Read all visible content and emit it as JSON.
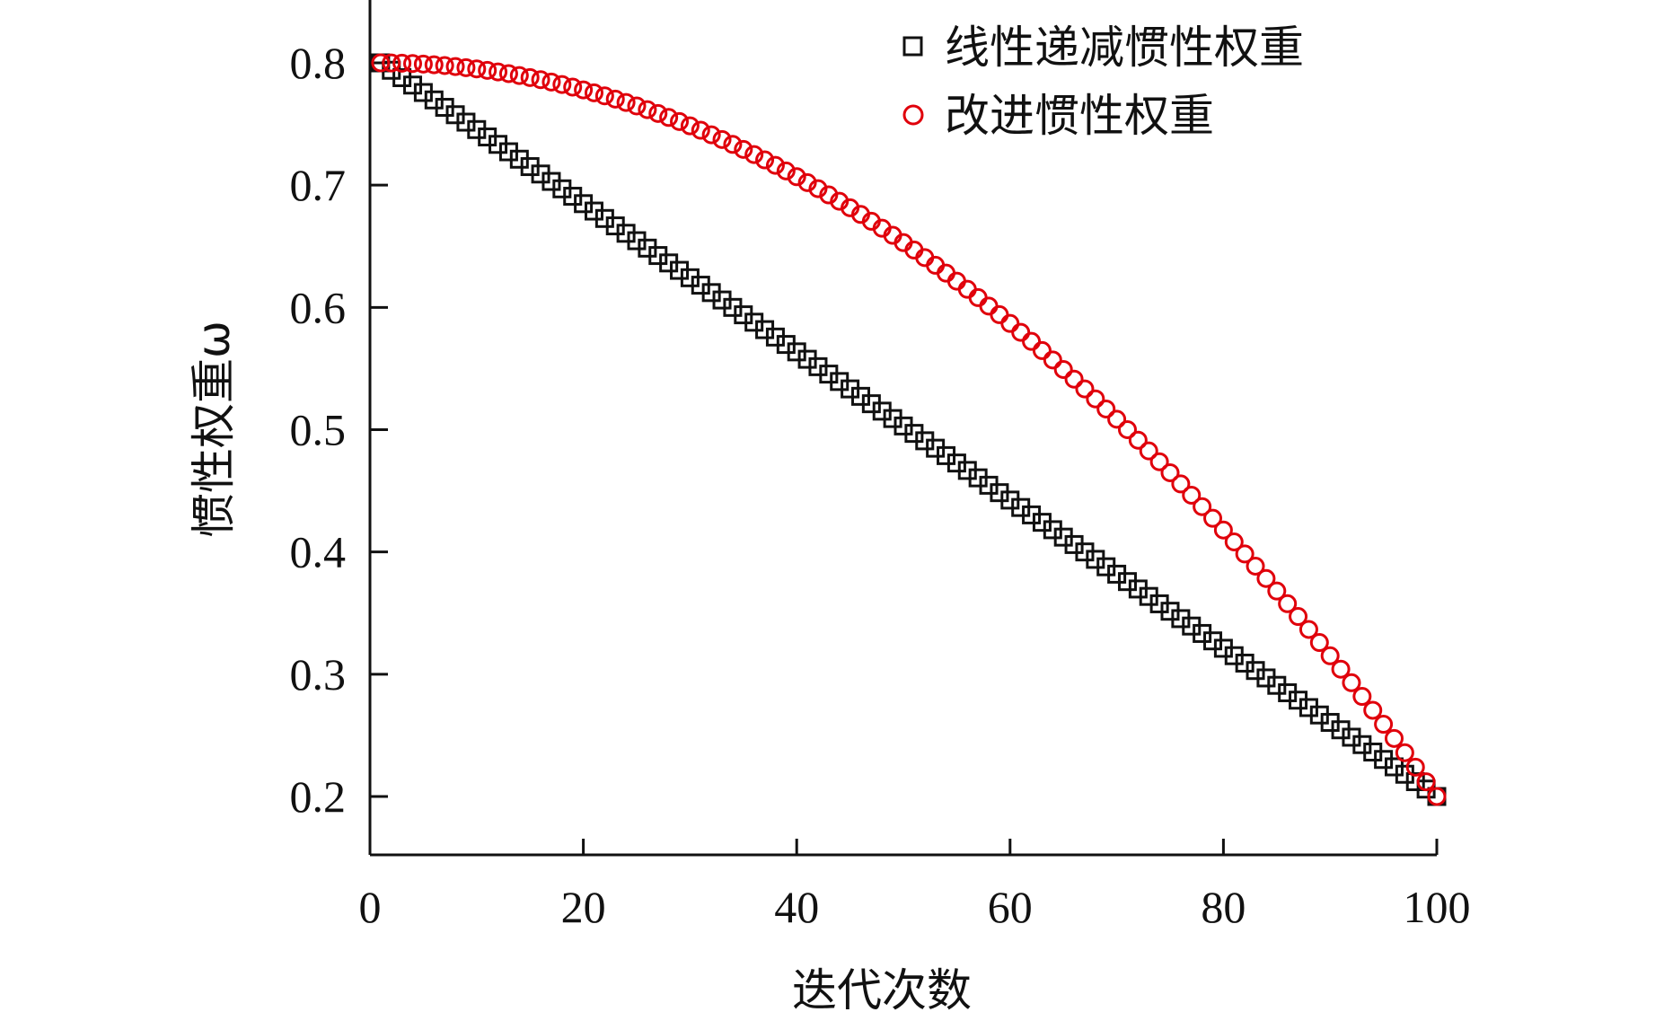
{
  "chart_data": {
    "type": "scatter",
    "title": "",
    "xlabel": "迭代次数",
    "ylabel": "惯性权重ω",
    "xlim": [
      0,
      100
    ],
    "ylim": [
      0.15,
      0.85
    ],
    "xticks": [
      0,
      20,
      40,
      60,
      80,
      100
    ],
    "yticks": [
      0.2,
      0.3,
      0.4,
      0.5,
      0.6,
      0.7,
      0.8
    ],
    "xtick_labels": [
      "0",
      "20",
      "40",
      "60",
      "80",
      "100"
    ],
    "ytick_labels": [
      "0.2",
      "0.3",
      "0.4",
      "0.5",
      "0.6",
      "0.7",
      "0.8"
    ],
    "grid": false,
    "legend_position": "top-right",
    "series": [
      {
        "name": "线性递减惯性权重",
        "marker": "square",
        "color": "#111111",
        "x_start": 1,
        "x_end": 100,
        "x_step": 1,
        "y_start": 0.8,
        "y_end": 0.2,
        "formula": "linear"
      },
      {
        "name": "改进惯性权重",
        "marker": "circle",
        "color": "#e0000b",
        "x_start": 1,
        "x_end": 100,
        "x_step": 1,
        "y_start": 0.8,
        "y_end": 0.2,
        "formula": "quadratic-decay"
      }
    ]
  }
}
